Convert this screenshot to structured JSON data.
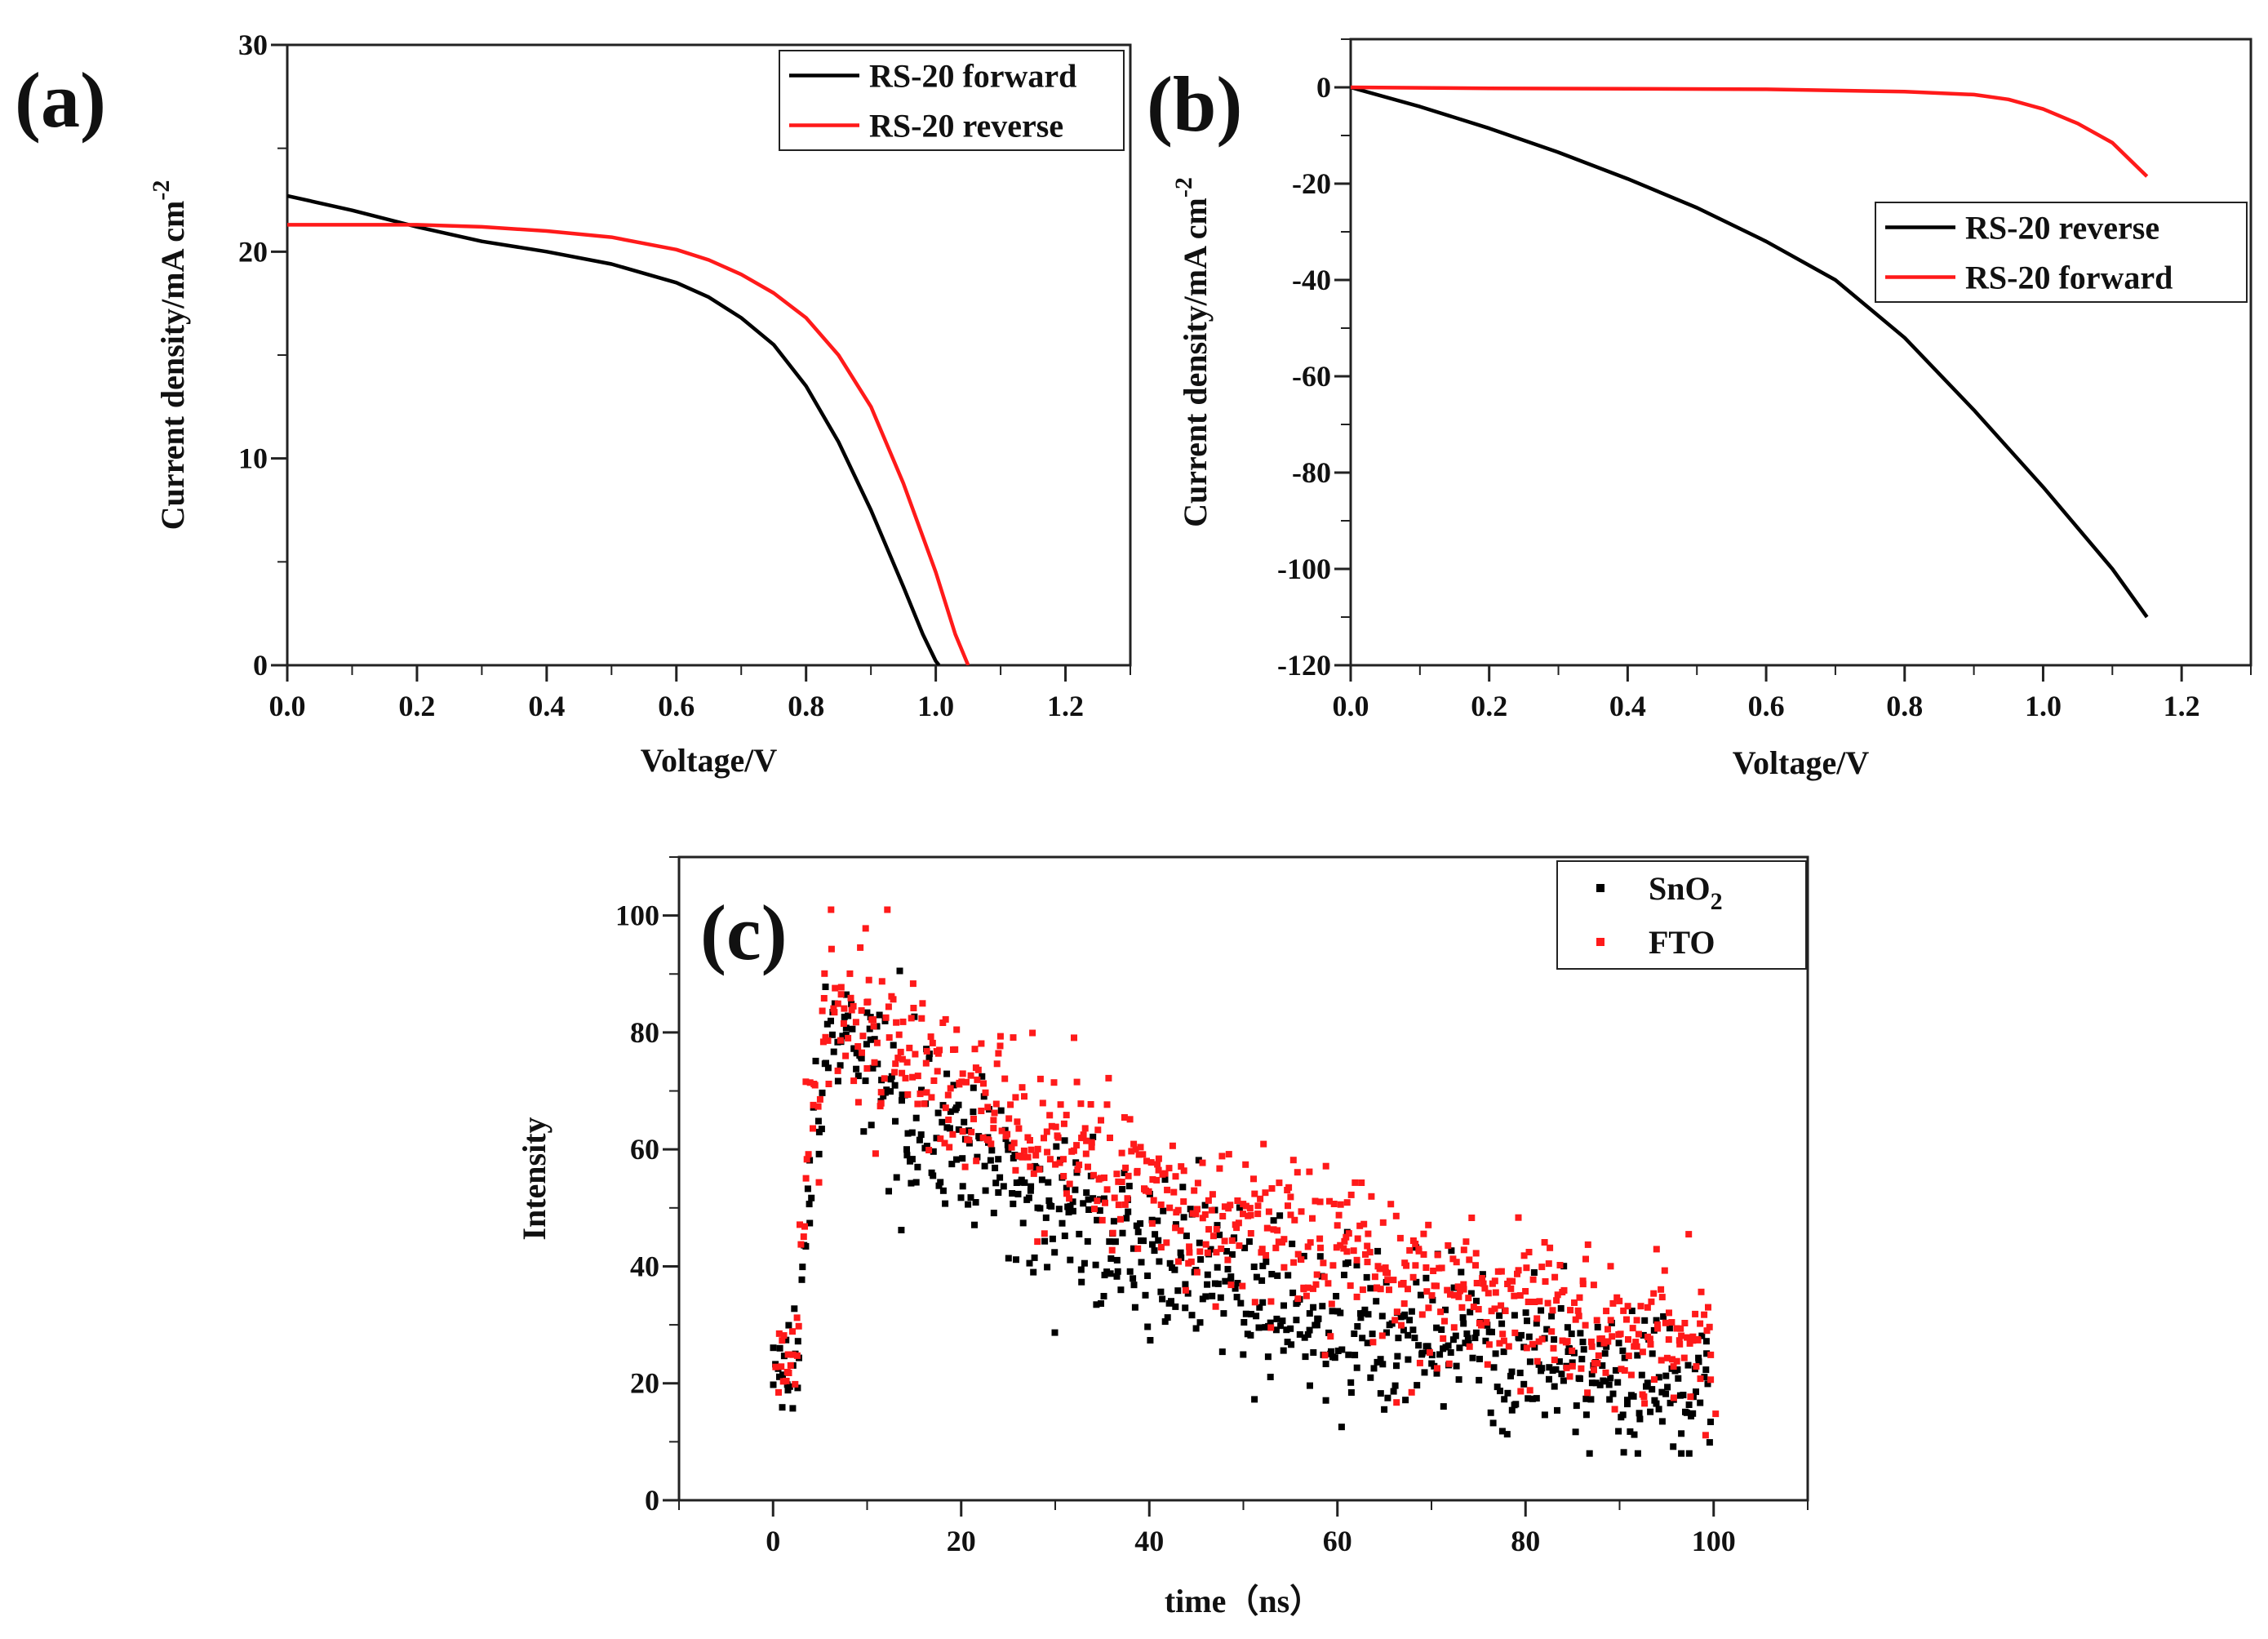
{
  "chart_data": [
    {
      "panel": "(a)",
      "type": "line",
      "xlabel": "Voltage/V",
      "ylabel": "Current density/mA cm",
      "ylabel_superscript": "-2",
      "xlim": [
        0.0,
        1.3
      ],
      "ylim": [
        0,
        30
      ],
      "xticks": [
        "0.0",
        "0.2",
        "0.4",
        "0.6",
        "0.8",
        "1.0",
        "1.2"
      ],
      "yticks": [
        "0",
        "10",
        "20",
        "30"
      ],
      "legend": "top-right",
      "series": [
        {
          "name": "RS-20 forward",
          "color": "#000000",
          "x": [
            0.0,
            0.1,
            0.2,
            0.3,
            0.4,
            0.5,
            0.6,
            0.65,
            0.7,
            0.75,
            0.8,
            0.85,
            0.9,
            0.95,
            0.98,
            1.0,
            1.005
          ],
          "y": [
            22.7,
            22.0,
            21.2,
            20.5,
            20.0,
            19.4,
            18.5,
            17.8,
            16.8,
            15.5,
            13.5,
            10.8,
            7.5,
            3.8,
            1.5,
            0.2,
            0.0
          ]
        },
        {
          "name": "RS-20 reverse",
          "color": "#ff1a1a",
          "x": [
            0.0,
            0.1,
            0.2,
            0.3,
            0.4,
            0.5,
            0.6,
            0.65,
            0.7,
            0.75,
            0.8,
            0.85,
            0.9,
            0.95,
            1.0,
            1.03,
            1.05
          ],
          "y": [
            21.3,
            21.3,
            21.3,
            21.2,
            21.0,
            20.7,
            20.1,
            19.6,
            18.9,
            18.0,
            16.8,
            15.0,
            12.5,
            8.8,
            4.5,
            1.5,
            0.0
          ]
        }
      ]
    },
    {
      "panel": "(b)",
      "type": "line",
      "xlabel": "Voltage/V",
      "ylabel": "Current density/mA cm",
      "ylabel_superscript": "-2",
      "xlim": [
        0.0,
        1.3
      ],
      "ylim": [
        -120,
        10
      ],
      "xticks": [
        "0.0",
        "0.2",
        "0.4",
        "0.6",
        "0.8",
        "1.0",
        "1.2"
      ],
      "yticks": [
        "-120",
        "-100",
        "-80",
        "-60",
        "-40",
        "-20",
        "0"
      ],
      "legend": "middle-right",
      "series": [
        {
          "name": "RS-20 reverse",
          "color": "#000000",
          "x": [
            0.0,
            0.1,
            0.2,
            0.3,
            0.4,
            0.5,
            0.6,
            0.7,
            0.8,
            0.9,
            1.0,
            1.1,
            1.15
          ],
          "y": [
            0.0,
            -4.0,
            -8.5,
            -13.5,
            -19.0,
            -25.0,
            -32.0,
            -40.0,
            -52.0,
            -67.0,
            -83.0,
            -100.0,
            -110.0
          ]
        },
        {
          "name": "RS-20 forward",
          "color": "#ff1a1a",
          "x": [
            0.0,
            0.2,
            0.4,
            0.6,
            0.8,
            0.9,
            0.95,
            1.0,
            1.05,
            1.1,
            1.15
          ],
          "y": [
            0.0,
            -0.2,
            -0.3,
            -0.4,
            -0.9,
            -1.5,
            -2.5,
            -4.5,
            -7.5,
            -11.5,
            -18.5
          ]
        }
      ]
    },
    {
      "panel": "(c)",
      "type": "scatter",
      "xlabel": "time（ns）",
      "ylabel": "Intensity",
      "xlim": [
        -10,
        110
      ],
      "ylim": [
        0,
        110
      ],
      "xticks": [
        "0",
        "20",
        "40",
        "60",
        "80",
        "100"
      ],
      "yticks": [
        "0",
        "20",
        "40",
        "60",
        "80",
        "100"
      ],
      "legend": "top-right",
      "series": [
        {
          "name": "SnO",
          "name_subscript": "2",
          "color": "#000000",
          "trend": {
            "rise_start": 0,
            "rise_end": 3.5,
            "baseline": 22,
            "peak": 80,
            "peak_time": 6,
            "tau_ns": 40,
            "floor": 0,
            "noise": 6.5
          }
        },
        {
          "name": "FTO",
          "color": "#ff1a1a",
          "trend": {
            "rise_start": 0,
            "rise_end": 3.5,
            "baseline": 24,
            "peak": 85,
            "peak_time": 6,
            "tau_ns": 55,
            "floor": 0,
            "noise": 6.5
          }
        }
      ]
    }
  ]
}
